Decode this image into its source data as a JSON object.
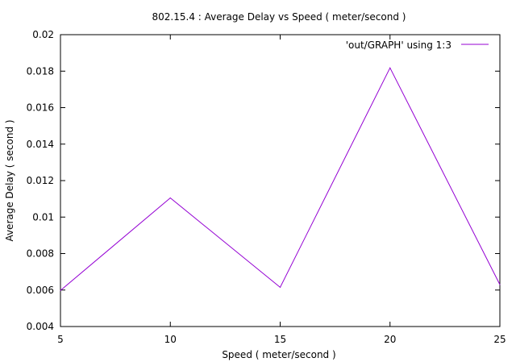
{
  "chart_data": {
    "type": "line",
    "title": "802.15.4 : Average Delay vs Speed ( meter/second )",
    "xlabel": "Speed ( meter/second )",
    "ylabel": "Average Delay ( second )",
    "xlim": [
      5,
      25
    ],
    "ylim": [
      0.004,
      0.02
    ],
    "xticks": [
      "5",
      "10",
      "15",
      "20",
      "25"
    ],
    "yticks": [
      "0.004",
      "0.006",
      "0.008",
      "0.01",
      "0.012",
      "0.014",
      "0.016",
      "0.018",
      "0.02"
    ],
    "grid": false,
    "legend_position": "top-right",
    "series": [
      {
        "name": "'out/GRAPH' using 1:3",
        "color": "#9400d3",
        "x": [
          5,
          10,
          15,
          20,
          25
        ],
        "y": [
          0.00598,
          0.01105,
          0.00615,
          0.01818,
          0.0063
        ]
      }
    ]
  }
}
